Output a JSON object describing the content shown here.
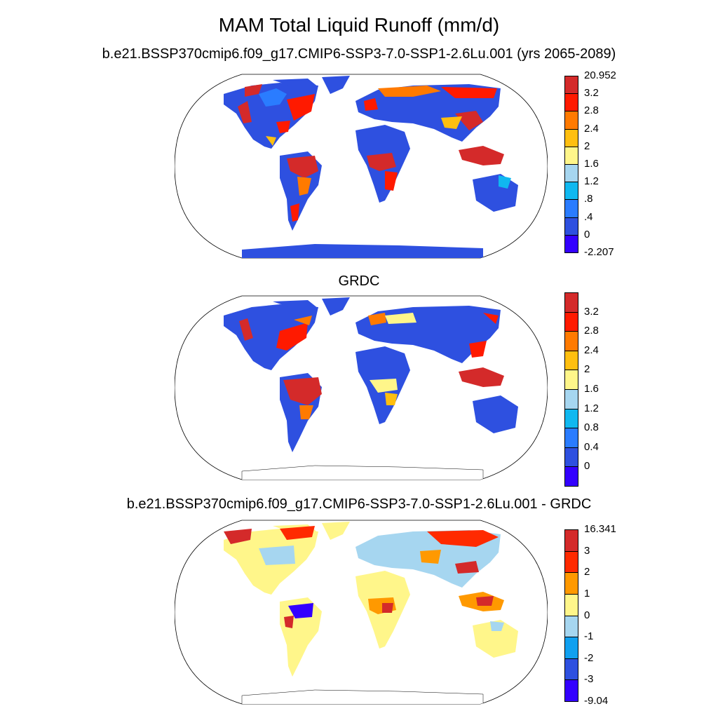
{
  "figure": {
    "title": "MAM Total Liquid Runoff (mm/d)",
    "panels": [
      {
        "subtitle": "b.e21.BSSP370cmip6.f09_g17.CMIP6-SSP3-7.0-SSP1-2.6Lu.001 (yrs 2065-2089)",
        "colors": [
          "#3300ff",
          "#2e50e0",
          "#2a7cff",
          "#10b8f0",
          "#a6d6f0",
          "#fff68a",
          "#ffbf10",
          "#ff7a00",
          "#ff1a00",
          "#d42a2a"
        ],
        "labels": [
          "-2.207",
          "0",
          ".4",
          ".8",
          "1.2",
          "1.6",
          "2",
          "2.4",
          "2.8",
          "3.2",
          "20.952"
        ],
        "label_style": "edges"
      },
      {
        "subtitle": "GRDC",
        "colors": [
          "#3300ff",
          "#2e50e0",
          "#2a7cff",
          "#10b8f0",
          "#a6d6f0",
          "#fff68a",
          "#ffbf10",
          "#ff7a00",
          "#ff1a00",
          "#d42a2a"
        ],
        "labels": [
          "0",
          "0.4",
          "0.8",
          "1.2",
          "1.6",
          "2",
          "2.4",
          "2.8",
          "3.2"
        ],
        "label_style": "interior"
      },
      {
        "subtitle": "b.e21.BSSP370cmip6.f09_g17.CMIP6-SSP3-7.0-SSP1-2.6Lu.001 - GRDC",
        "colors": [
          "#3300ff",
          "#2e50e0",
          "#10a0f0",
          "#a6d6f0",
          "#fff68a",
          "#ff9900",
          "#ff2a00",
          "#d42a2a"
        ],
        "labels": [
          "-9.04",
          "-3",
          "-2",
          "-1",
          "0",
          "1",
          "2",
          "3",
          "16.341"
        ],
        "label_style": "edges"
      }
    ]
  }
}
